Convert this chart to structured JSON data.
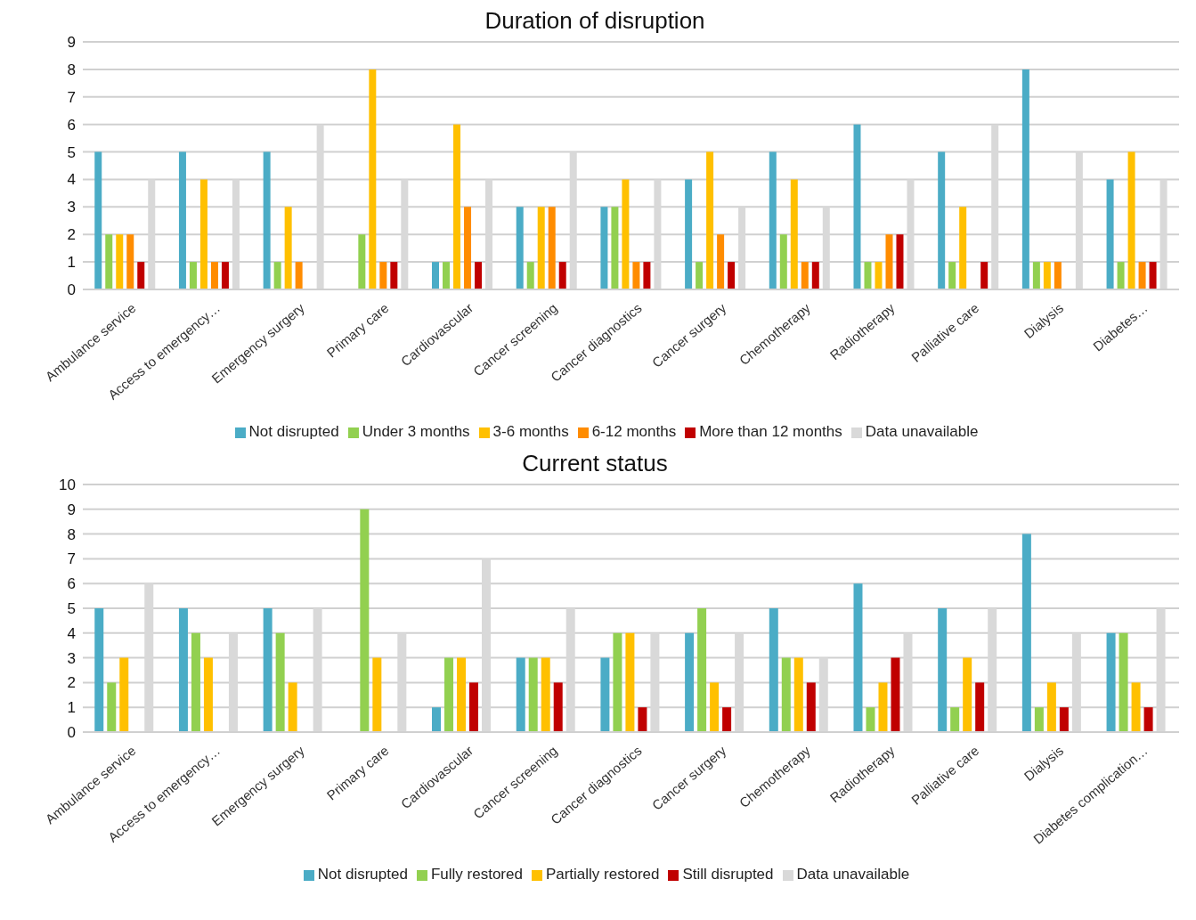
{
  "chart_data": [
    {
      "type": "bar",
      "title": "Duration of disruption",
      "categories": [
        "Ambulance service",
        "Access to emergency…",
        "Emergency surgery",
        "Primary care",
        "Cardiovascular",
        "Cancer screening",
        "Cancer diagnostics",
        "Cancer surgery",
        "Chemotherapy",
        "Radiotherapy",
        "Palliative care",
        "Dialysis",
        "Diabetes…"
      ],
      "ylim": [
        0,
        9
      ],
      "yticks": [
        0,
        1,
        2,
        3,
        4,
        5,
        6,
        7,
        8,
        9
      ],
      "grid": "y",
      "legend": "bottom",
      "series": [
        {
          "name": "Not disrupted",
          "color": "#4bacc6",
          "values": [
            5,
            5,
            5,
            null,
            1,
            3,
            3,
            4,
            5,
            6,
            5,
            8,
            4
          ]
        },
        {
          "name": "Under 3 months",
          "color": "#92d050",
          "values": [
            2,
            1,
            1,
            2,
            1,
            1,
            3,
            1,
            2,
            1,
            1,
            1,
            1
          ]
        },
        {
          "name": "3-6 months",
          "color": "#ffc000",
          "values": [
            2,
            4,
            3,
            8,
            6,
            3,
            4,
            5,
            4,
            1,
            3,
            1,
            5
          ]
        },
        {
          "name": "6-12 months",
          "color": "#ff8c00",
          "values": [
            2,
            1,
            1,
            1,
            3,
            3,
            1,
            2,
            1,
            2,
            null,
            1,
            1
          ]
        },
        {
          "name": "More than 12 months",
          "color": "#c00000",
          "values": [
            1,
            1,
            null,
            1,
            1,
            1,
            1,
            1,
            1,
            2,
            1,
            null,
            1
          ]
        },
        {
          "name": "Data unavailable",
          "color": "#d9d9d9",
          "values": [
            4,
            4,
            6,
            4,
            4,
            5,
            4,
            3,
            3,
            4,
            6,
            5,
            4
          ]
        }
      ]
    },
    {
      "type": "bar",
      "title": "Current status",
      "categories": [
        "Ambulance service",
        "Access to emergency…",
        "Emergency surgery",
        "Primary care",
        "Cardiovascular",
        "Cancer screening",
        "Cancer diagnostics",
        "Cancer surgery",
        "Chemotherapy",
        "Radiotherapy",
        "Palliative care",
        "Dialysis",
        "Diabetes complication…"
      ],
      "ylim": [
        0,
        10
      ],
      "yticks": [
        0,
        1,
        2,
        3,
        4,
        5,
        6,
        7,
        8,
        9,
        10
      ],
      "grid": "y",
      "legend": "bottom",
      "series": [
        {
          "name": "Not disrupted",
          "color": "#4bacc6",
          "values": [
            5,
            5,
            5,
            null,
            1,
            3,
            3,
            4,
            5,
            6,
            5,
            8,
            4
          ]
        },
        {
          "name": "Fully restored",
          "color": "#92d050",
          "values": [
            2,
            4,
            4,
            9,
            3,
            3,
            4,
            5,
            3,
            1,
            1,
            1,
            4
          ]
        },
        {
          "name": "Partially restored",
          "color": "#ffc000",
          "values": [
            3,
            3,
            2,
            3,
            3,
            3,
            4,
            2,
            3,
            2,
            3,
            2,
            2
          ]
        },
        {
          "name": "Still disrupted",
          "color": "#c00000",
          "values": [
            null,
            null,
            null,
            null,
            2,
            2,
            1,
            1,
            2,
            3,
            2,
            1,
            1
          ]
        },
        {
          "name": "Data unavailable",
          "color": "#d9d9d9",
          "values": [
            6,
            4,
            5,
            4,
            7,
            5,
            4,
            4,
            3,
            4,
            5,
            4,
            5
          ]
        }
      ]
    }
  ]
}
